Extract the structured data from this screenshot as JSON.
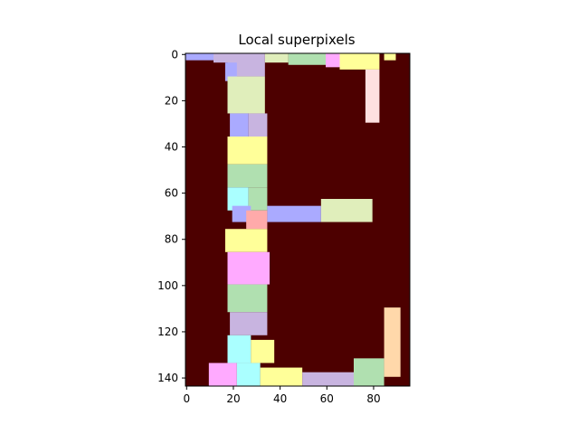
{
  "chart_data": {
    "type": "heatmap",
    "title": "Local superpixels",
    "xlabel": "",
    "ylabel": "",
    "xlim": [
      -0.5,
      95.5
    ],
    "ylim": [
      143.5,
      -0.5
    ],
    "x_ticks": [
      0,
      20,
      40,
      60,
      80
    ],
    "y_ticks": [
      0,
      20,
      40,
      60,
      80,
      100,
      120,
      140
    ],
    "grid": false,
    "legend": "none",
    "image_description_values": {
      "background_color": "#4d0000",
      "letter": "E",
      "segment_colors": [
        "#aaaaff",
        "#c8b4e0",
        "#e0eebb",
        "#ffff99",
        "#b0e0b0",
        "#aaffff",
        "#ffaaaa",
        "#ffaaff",
        "#ffd8aa",
        "#ffe0e0"
      ]
    },
    "segments": [
      {
        "x0": 0,
        "x1": 12,
        "y0": 0,
        "y1": 3,
        "color": "#aaaaff"
      },
      {
        "x0": 12,
        "x1": 18,
        "y0": 0,
        "y1": 4,
        "color": "#c8b4e0"
      },
      {
        "x0": 18,
        "x1": 34,
        "y0": 0,
        "y1": 10,
        "color": "#c8b4e0"
      },
      {
        "x0": 34,
        "x1": 44,
        "y0": 0,
        "y1": 4,
        "color": "#e0eebb"
      },
      {
        "x0": 44,
        "x1": 60,
        "y0": 0,
        "y1": 5,
        "color": "#b0e0b0"
      },
      {
        "x0": 60,
        "x1": 66,
        "y0": 0,
        "y1": 6,
        "color": "#ffaaff"
      },
      {
        "x0": 66,
        "x1": 83,
        "y0": 0,
        "y1": 7,
        "color": "#ffff99"
      },
      {
        "x0": 85,
        "x1": 90,
        "y0": 0,
        "y1": 3,
        "color": "#ffff99"
      },
      {
        "x0": 77,
        "x1": 83,
        "y0": 7,
        "y1": 30,
        "color": "#ffe0e0"
      },
      {
        "x0": 17,
        "x1": 22,
        "y0": 4,
        "y1": 12,
        "color": "#aaaaff"
      },
      {
        "x0": 18,
        "x1": 34,
        "y0": 10,
        "y1": 26,
        "color": "#e0eebb"
      },
      {
        "x0": 19,
        "x1": 27,
        "y0": 26,
        "y1": 36,
        "color": "#aaaaff"
      },
      {
        "x0": 27,
        "x1": 35,
        "y0": 26,
        "y1": 36,
        "color": "#c8b4e0"
      },
      {
        "x0": 18,
        "x1": 35,
        "y0": 36,
        "y1": 48,
        "color": "#ffff99"
      },
      {
        "x0": 18,
        "x1": 35,
        "y0": 48,
        "y1": 58,
        "color": "#b0e0b0"
      },
      {
        "x0": 18,
        "x1": 27,
        "y0": 58,
        "y1": 68,
        "color": "#aaffff"
      },
      {
        "x0": 27,
        "x1": 35,
        "y0": 58,
        "y1": 68,
        "color": "#b0e0b0"
      },
      {
        "x0": 20,
        "x1": 28,
        "y0": 66,
        "y1": 73,
        "color": "#aaaaff"
      },
      {
        "x0": 26,
        "x1": 35,
        "y0": 68,
        "y1": 76,
        "color": "#ffaaaa"
      },
      {
        "x0": 35,
        "x1": 58,
        "y0": 66,
        "y1": 73,
        "color": "#aaaaff"
      },
      {
        "x0": 58,
        "x1": 80,
        "y0": 63,
        "y1": 73,
        "color": "#e0eebb"
      },
      {
        "x0": 17,
        "x1": 35,
        "y0": 76,
        "y1": 86,
        "color": "#ffff99"
      },
      {
        "x0": 18,
        "x1": 36,
        "y0": 86,
        "y1": 100,
        "color": "#ffaaff"
      },
      {
        "x0": 18,
        "x1": 35,
        "y0": 100,
        "y1": 112,
        "color": "#b0e0b0"
      },
      {
        "x0": 19,
        "x1": 35,
        "y0": 112,
        "y1": 122,
        "color": "#c8b4e0"
      },
      {
        "x0": 18,
        "x1": 28,
        "y0": 122,
        "y1": 134,
        "color": "#aaffff"
      },
      {
        "x0": 28,
        "x1": 38,
        "y0": 124,
        "y1": 134,
        "color": "#ffff99"
      },
      {
        "x0": 10,
        "x1": 22,
        "y0": 134,
        "y1": 144,
        "color": "#ffaaff"
      },
      {
        "x0": 22,
        "x1": 32,
        "y0": 134,
        "y1": 144,
        "color": "#aaffff"
      },
      {
        "x0": 32,
        "x1": 50,
        "y0": 136,
        "y1": 144,
        "color": "#ffff99"
      },
      {
        "x0": 50,
        "x1": 72,
        "y0": 138,
        "y1": 144,
        "color": "#c8b4e0"
      },
      {
        "x0": 72,
        "x1": 85,
        "y0": 132,
        "y1": 144,
        "color": "#b0e0b0"
      },
      {
        "x0": 85,
        "x1": 92,
        "y0": 110,
        "y1": 140,
        "color": "#ffd8aa"
      }
    ]
  }
}
